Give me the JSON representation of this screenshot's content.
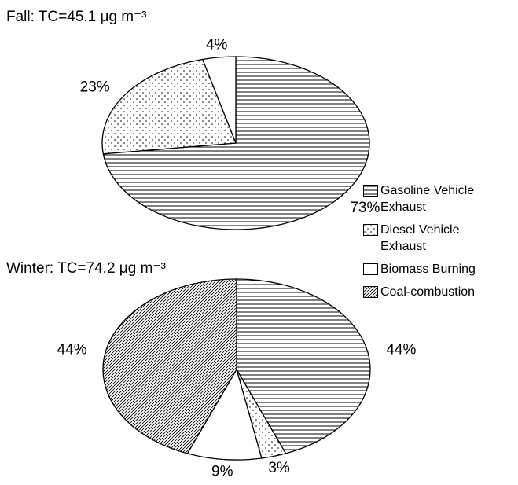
{
  "chart_data": [
    {
      "type": "pie",
      "title": "Fall: TC=45.1 μg m⁻³",
      "values": [
        73,
        23,
        4
      ],
      "value_labels": [
        "73%",
        "23%",
        "4%"
      ]
    },
    {
      "type": "pie",
      "title": "Winter: TC=74.2 μg m⁻³",
      "values": [
        44,
        3,
        9,
        44
      ],
      "value_labels": [
        "44%",
        "3%",
        "9%",
        "44%"
      ]
    }
  ],
  "legend": {
    "labels": [
      "Gasoline Vehicle Exhaust",
      "Diesel Vehicle Exhaust",
      "Biomass Burning",
      "Coal-combustion"
    ],
    "patterns": [
      "horizontal",
      "dots",
      "none",
      "diagonal"
    ]
  }
}
